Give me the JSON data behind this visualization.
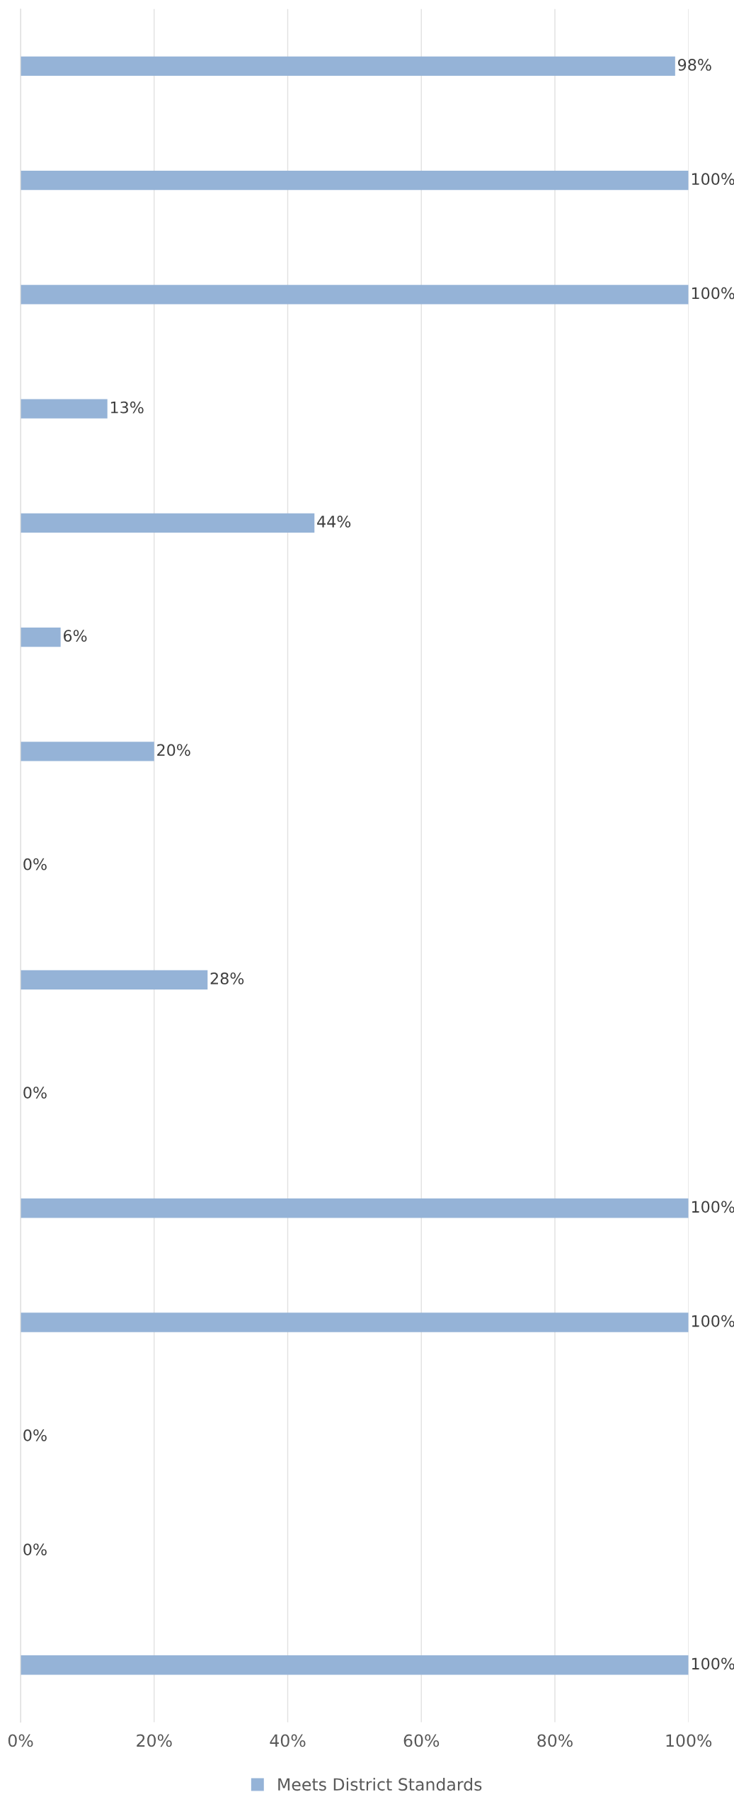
{
  "chart_data": {
    "type": "bar",
    "orientation": "horizontal",
    "categories": [
      null,
      null,
      null,
      null,
      null,
      null,
      null,
      null,
      null,
      null,
      null,
      null,
      null,
      null,
      null
    ],
    "series": [
      {
        "name": "Meets District Standards",
        "color": "#95b3d7",
        "values": [
          98,
          100,
          100,
          13,
          44,
          6,
          20,
          0,
          28,
          0,
          100,
          100,
          0,
          0,
          100
        ],
        "value_labels": [
          "98%",
          "100%",
          "100%",
          "13%",
          "44%",
          "6%",
          "20%",
          "0%",
          "28%",
          "0%",
          "100%",
          "100%",
          "0%",
          "0%",
          "100%"
        ]
      }
    ],
    "xlim": [
      0,
      100
    ],
    "xticks": [
      {
        "value": 0,
        "label": "0%"
      },
      {
        "value": 20,
        "label": "20%"
      },
      {
        "value": 40,
        "label": "40%"
      },
      {
        "value": 60,
        "label": "60%"
      },
      {
        "value": 80,
        "label": "80%"
      },
      {
        "value": 100,
        "label": "100%"
      }
    ],
    "grid": "x",
    "legend": "bottom",
    "tick_labels": "x"
  }
}
